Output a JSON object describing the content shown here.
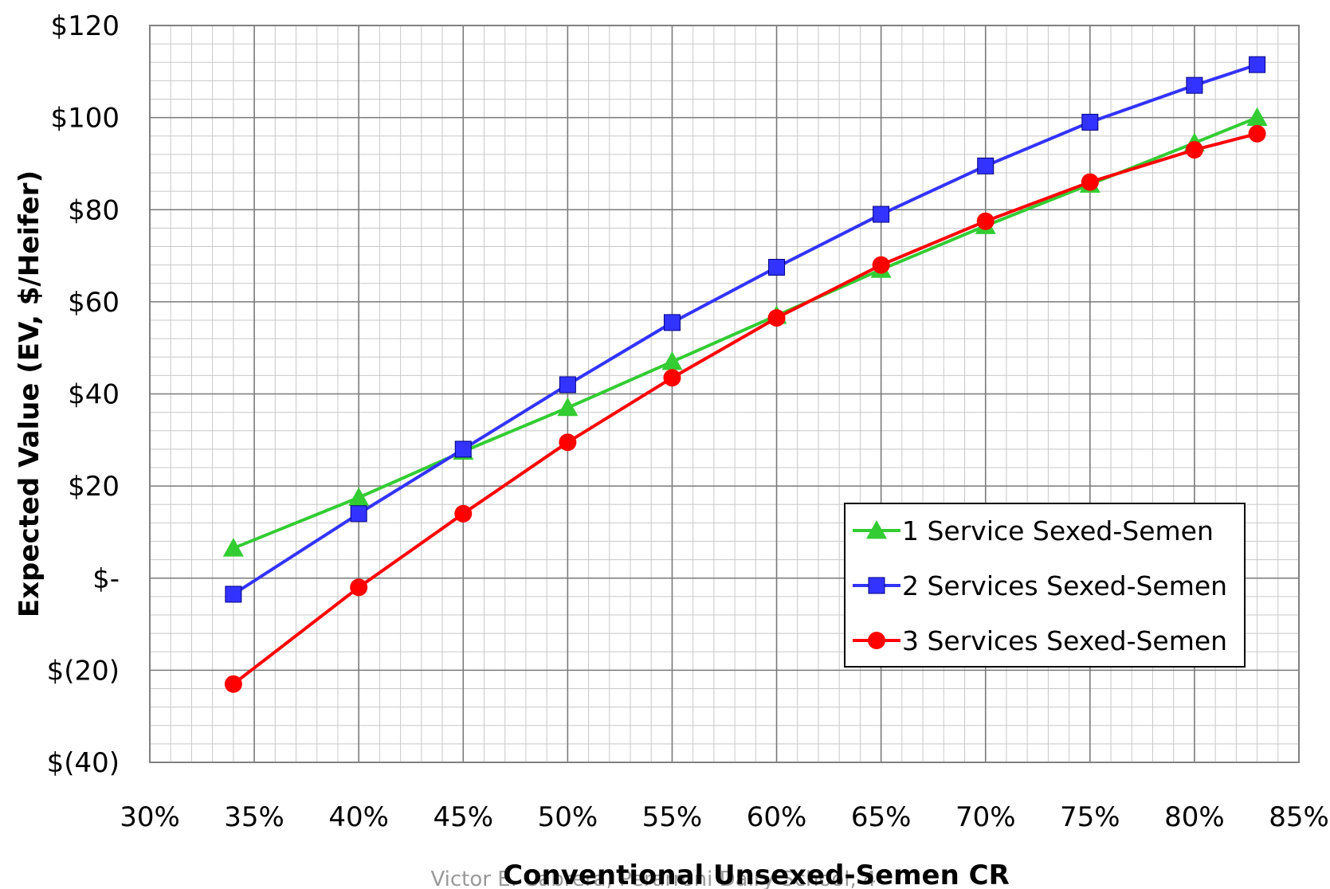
{
  "footer": {
    "text": "Victor E. Cabrera, Perarroni Dairy School, 4"
  },
  "chart_data": {
    "type": "line",
    "title": "",
    "xlabel": "Conventional Unsexed-Semen CR",
    "ylabel": "Expected Value  (EV, $/Heifer)",
    "xlim": [
      30,
      85
    ],
    "ylim": [
      -40,
      120
    ],
    "x_ticks": [
      30,
      35,
      40,
      45,
      50,
      55,
      60,
      65,
      70,
      75,
      80,
      85
    ],
    "x_tick_labels": [
      "30%",
      "35%",
      "40%",
      "45%",
      "50%",
      "55%",
      "60%",
      "65%",
      "70%",
      "75%",
      "80%",
      "85%"
    ],
    "y_ticks": [
      120,
      100,
      80,
      60,
      40,
      20,
      0,
      -20,
      -40
    ],
    "y_tick_labels": [
      "$120",
      "$100",
      "$80",
      "$60",
      "$40",
      "$20",
      "$-",
      "$(20)",
      "$(40)"
    ],
    "grid": true,
    "legend_position": "right",
    "x": [
      34,
      40,
      45,
      50,
      55,
      60,
      65,
      70,
      75,
      80,
      83
    ],
    "series": [
      {
        "name": "1 Service Sexed-Semen",
        "color": "#33cc33",
        "marker": "triangle",
        "values": [
          6.5,
          17.5,
          27.5,
          37,
          47,
          57,
          67,
          76.5,
          85.5,
          94.5,
          100
        ]
      },
      {
        "name": "2 Services Sexed-Semen",
        "color": "#3333ff",
        "marker": "square",
        "values": [
          -3.5,
          14,
          28,
          42,
          55.5,
          67.5,
          79,
          89.5,
          99,
          107,
          111.5
        ]
      },
      {
        "name": "3 Services Sexed-Semen",
        "color": "#ff0000",
        "marker": "circle",
        "values": [
          -23,
          -2,
          14,
          29.5,
          43.5,
          56.5,
          68,
          77.5,
          86,
          93,
          96.5
        ]
      }
    ]
  }
}
